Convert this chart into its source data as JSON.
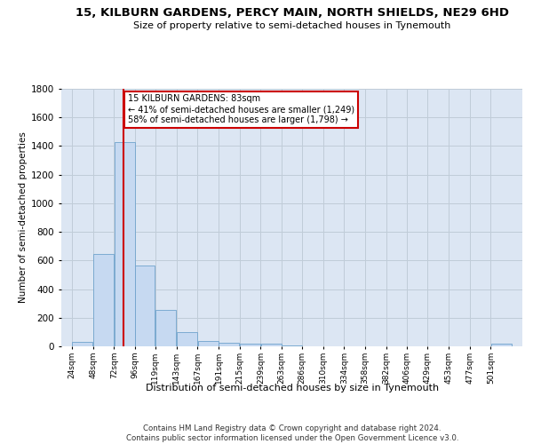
{
  "title": "15, KILBURN GARDENS, PERCY MAIN, NORTH SHIELDS, NE29 6HD",
  "subtitle": "Size of property relative to semi-detached houses in Tynemouth",
  "xlabel": "Distribution of semi-detached houses by size in Tynemouth",
  "ylabel": "Number of semi-detached properties",
  "property_label": "15 KILBURN GARDENS: 83sqm",
  "pct_smaller": 41,
  "pct_larger": 58,
  "n_smaller": 1249,
  "n_larger": 1798,
  "bin_labels": [
    "24sqm",
    "48sqm",
    "72sqm",
    "96sqm",
    "119sqm",
    "143sqm",
    "167sqm",
    "191sqm",
    "215sqm",
    "239sqm",
    "263sqm",
    "286sqm",
    "310sqm",
    "334sqm",
    "358sqm",
    "382sqm",
    "406sqm",
    "429sqm",
    "453sqm",
    "477sqm",
    "501sqm"
  ],
  "bin_edges": [
    24,
    48,
    72,
    96,
    119,
    143,
    167,
    191,
    215,
    239,
    263,
    286,
    310,
    334,
    358,
    382,
    406,
    429,
    453,
    477,
    501,
    525
  ],
  "bar_values": [
    30,
    645,
    1430,
    565,
    255,
    100,
    35,
    25,
    18,
    18,
    5,
    0,
    0,
    0,
    0,
    0,
    0,
    0,
    0,
    0,
    18
  ],
  "bar_color": "#c6d9f1",
  "bar_edge_color": "#6fa3cc",
  "vline_color": "#cc0000",
  "vline_x": 83,
  "ylim_max": 1800,
  "yticks": [
    0,
    200,
    400,
    600,
    800,
    1000,
    1200,
    1400,
    1600,
    1800
  ],
  "grid_color": "#c0ccd8",
  "background_color": "#dce6f3",
  "footer": "Contains HM Land Registry data © Crown copyright and database right 2024.\nContains public sector information licensed under the Open Government Licence v3.0."
}
